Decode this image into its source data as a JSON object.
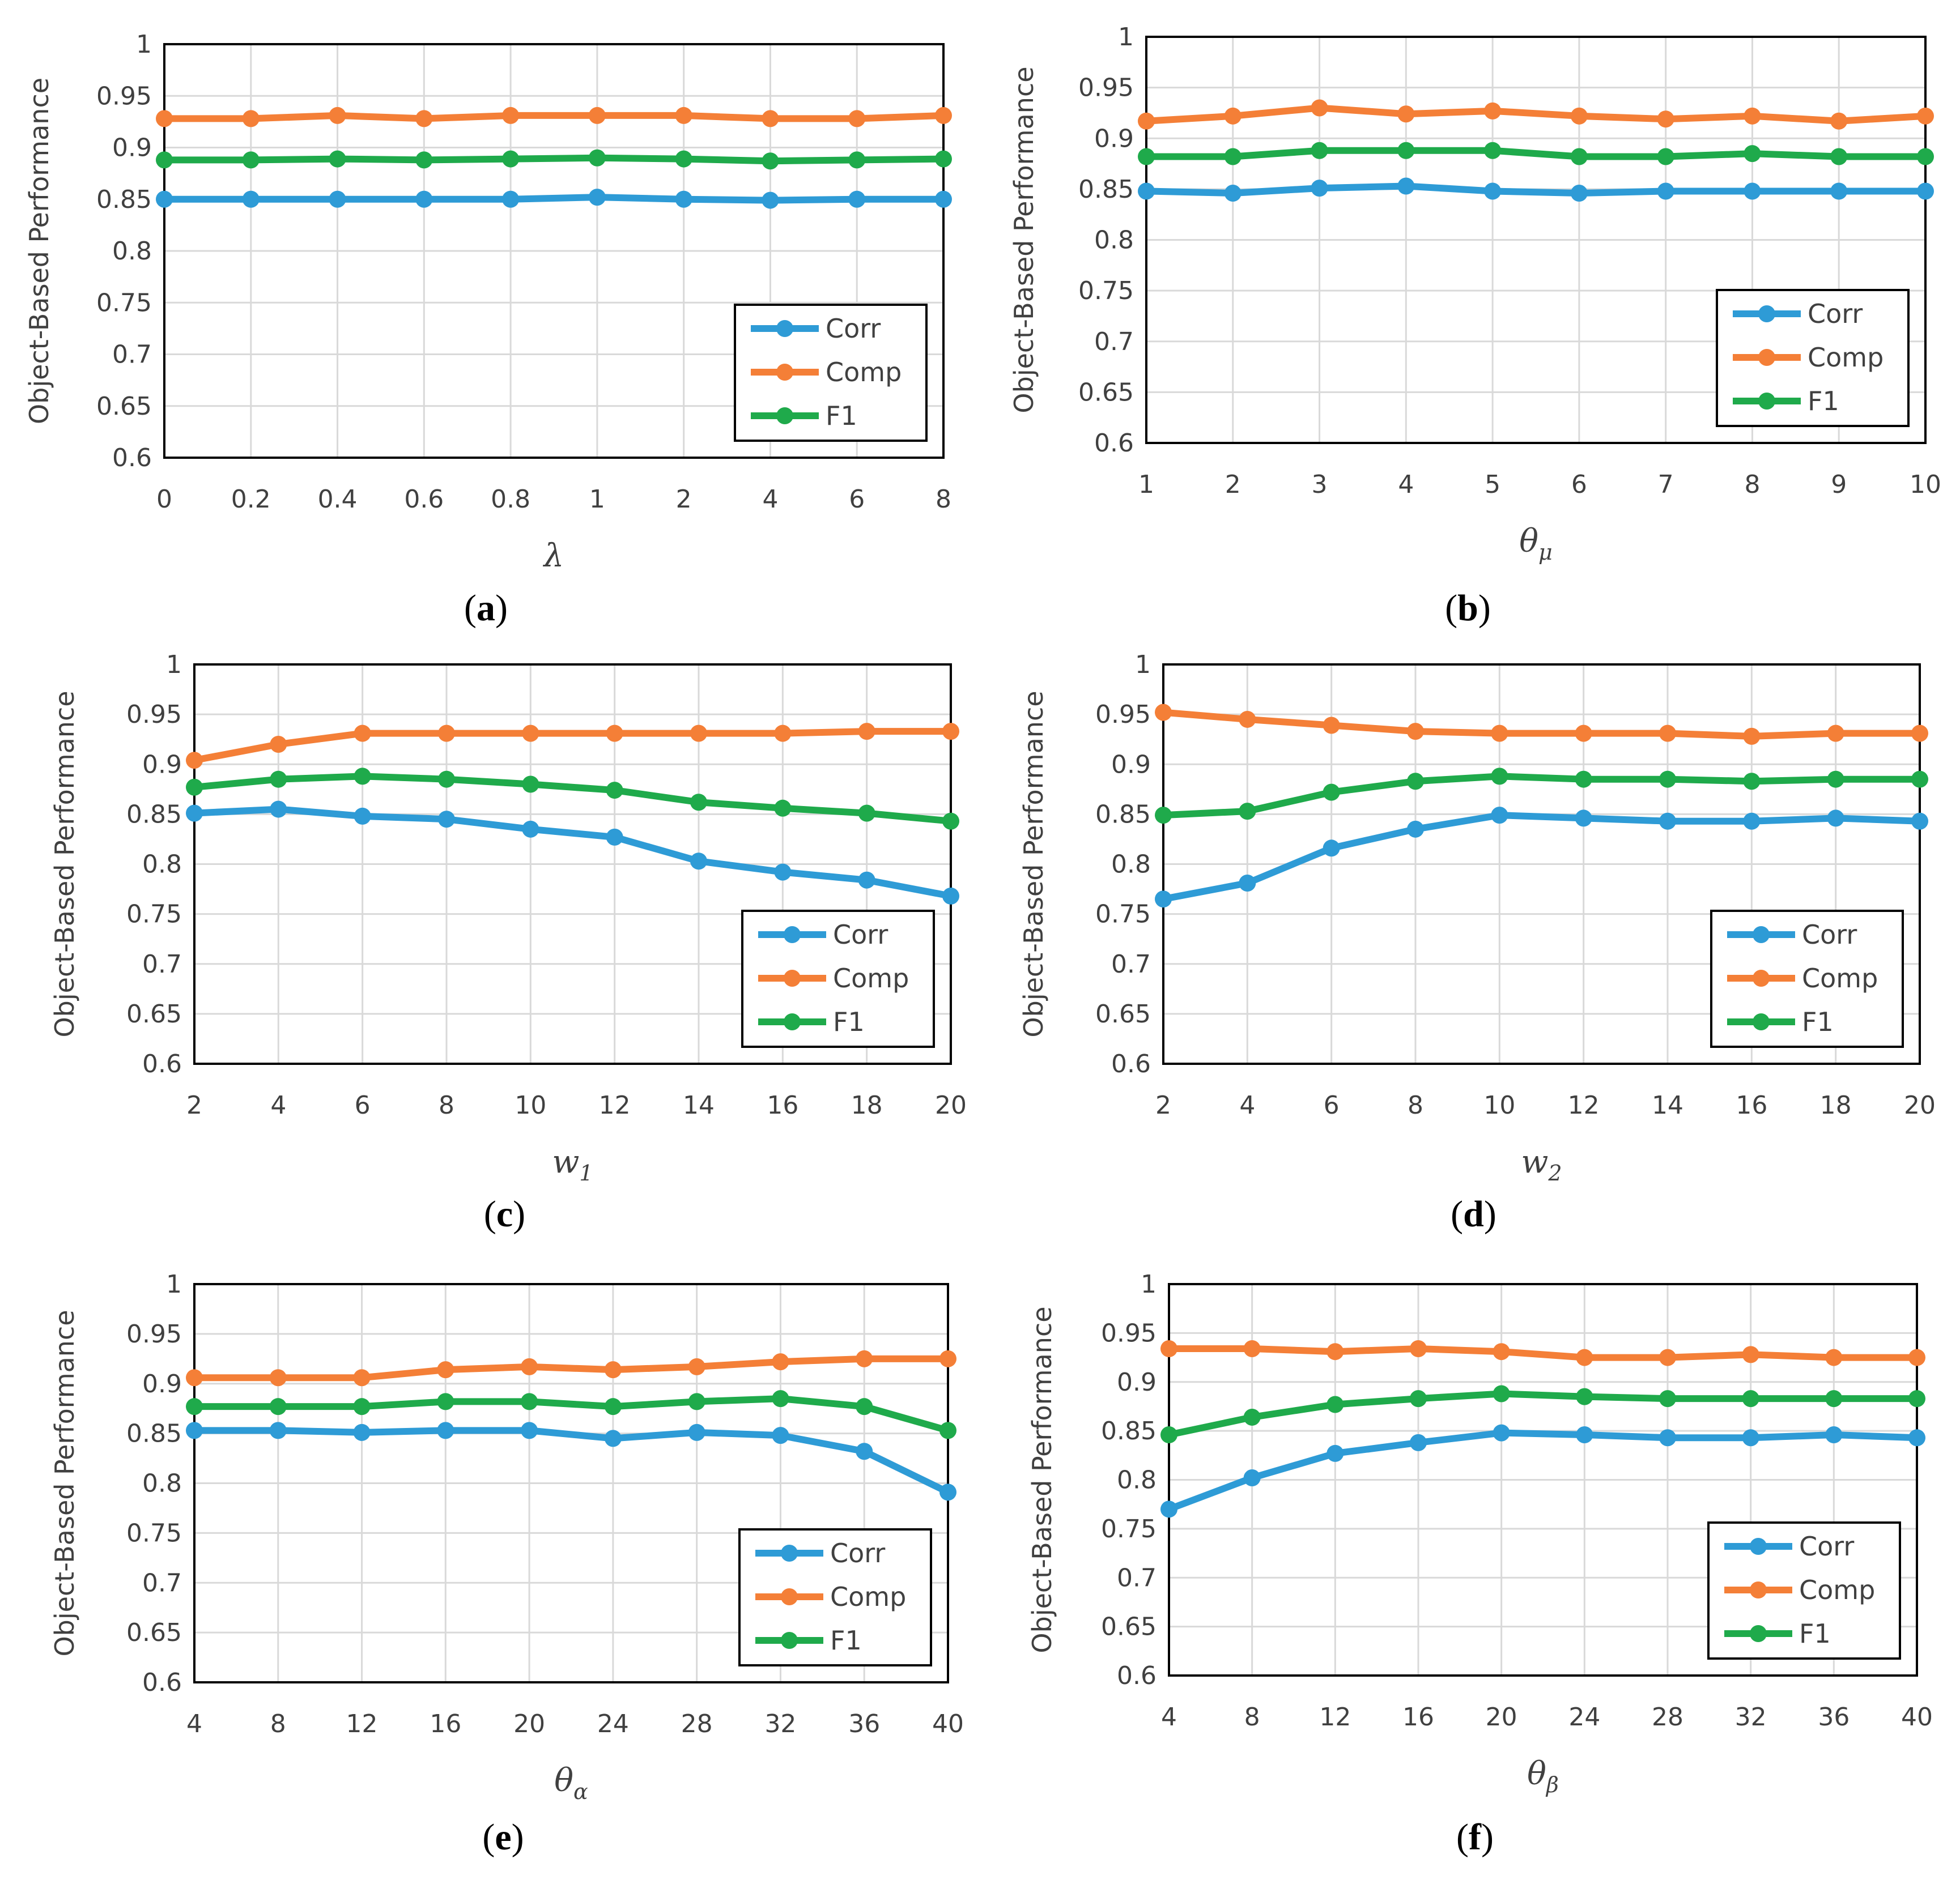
{
  "colors": {
    "Corr": "#2E9BD6",
    "Comp": "#F47F37",
    "F1": "#1FAA4B",
    "grid": "#D9D9D9",
    "frame": "#000000"
  },
  "chart_data": [
    {
      "type": "line",
      "caption_letter": "a",
      "xlabel_main": "λ",
      "xlabel_sub": "",
      "ylabel": "Object-Based Performance",
      "ylim": [
        0.6,
        1
      ],
      "yticks": [
        "0.6",
        "0.65",
        "0.7",
        "0.75",
        "0.8",
        "0.85",
        "0.9",
        "0.95",
        "1"
      ],
      "categories": [
        "0",
        "0.2",
        "0.4",
        "0.6",
        "0.8",
        "1",
        "2",
        "4",
        "6",
        "8"
      ],
      "legend": "bottom-right",
      "series": [
        {
          "name": "Corr",
          "values": [
            0.85,
            0.85,
            0.85,
            0.85,
            0.85,
            0.852,
            0.85,
            0.849,
            0.85,
            0.85
          ]
        },
        {
          "name": "Comp",
          "values": [
            0.928,
            0.928,
            0.931,
            0.928,
            0.931,
            0.931,
            0.931,
            0.928,
            0.928,
            0.931
          ]
        },
        {
          "name": "F1",
          "values": [
            0.888,
            0.888,
            0.889,
            0.888,
            0.889,
            0.89,
            0.889,
            0.887,
            0.888,
            0.889
          ]
        }
      ]
    },
    {
      "type": "line",
      "caption_letter": "b",
      "xlabel_main": "θ",
      "xlabel_sub": "μ",
      "ylabel": "Object-Based Performance",
      "ylim": [
        0.6,
        1
      ],
      "yticks": [
        "0.6",
        "0.65",
        "0.7",
        "0.75",
        "0.8",
        "0.85",
        "0.9",
        "0.95",
        "1"
      ],
      "categories": [
        "1",
        "2",
        "3",
        "4",
        "5",
        "6",
        "7",
        "8",
        "9",
        "10"
      ],
      "legend": "bottom-right",
      "series": [
        {
          "name": "Corr",
          "values": [
            0.848,
            0.846,
            0.851,
            0.853,
            0.848,
            0.846,
            0.848,
            0.848,
            0.848,
            0.848
          ]
        },
        {
          "name": "Comp",
          "values": [
            0.917,
            0.922,
            0.93,
            0.924,
            0.927,
            0.922,
            0.919,
            0.922,
            0.917,
            0.922
          ]
        },
        {
          "name": "F1",
          "values": [
            0.882,
            0.882,
            0.888,
            0.888,
            0.888,
            0.882,
            0.882,
            0.885,
            0.882,
            0.882
          ]
        }
      ]
    },
    {
      "type": "line",
      "caption_letter": "c",
      "xlabel_main": "w",
      "xlabel_sub": "1",
      "ylabel": "Object-Based Performance",
      "ylim": [
        0.6,
        1
      ],
      "yticks": [
        "0.6",
        "0.65",
        "0.7",
        "0.75",
        "0.8",
        "0.85",
        "0.9",
        "0.95",
        "1"
      ],
      "categories": [
        "2",
        "4",
        "6",
        "8",
        "10",
        "12",
        "14",
        "16",
        "18",
        "20"
      ],
      "legend": "bottom-right",
      "series": [
        {
          "name": "Corr",
          "values": [
            0.851,
            0.855,
            0.848,
            0.845,
            0.835,
            0.827,
            0.803,
            0.792,
            0.784,
            0.768
          ]
        },
        {
          "name": "Comp",
          "values": [
            0.904,
            0.92,
            0.931,
            0.931,
            0.931,
            0.931,
            0.931,
            0.931,
            0.933,
            0.933
          ]
        },
        {
          "name": "F1",
          "values": [
            0.877,
            0.885,
            0.888,
            0.885,
            0.88,
            0.874,
            0.862,
            0.856,
            0.851,
            0.843
          ]
        }
      ]
    },
    {
      "type": "line",
      "caption_letter": "d",
      "xlabel_main": "w",
      "xlabel_sub": "2",
      "ylabel": "Object-Based Performance",
      "ylim": [
        0.6,
        1
      ],
      "yticks": [
        "0.6",
        "0.65",
        "0.7",
        "0.75",
        "0.8",
        "0.85",
        "0.9",
        "0.95",
        "1"
      ],
      "categories": [
        "2",
        "4",
        "6",
        "8",
        "10",
        "12",
        "14",
        "16",
        "18",
        "20"
      ],
      "legend": "bottom-right",
      "series": [
        {
          "name": "Corr",
          "values": [
            0.765,
            0.781,
            0.816,
            0.835,
            0.849,
            0.846,
            0.843,
            0.843,
            0.846,
            0.843
          ]
        },
        {
          "name": "Comp",
          "values": [
            0.952,
            0.945,
            0.939,
            0.933,
            0.931,
            0.931,
            0.931,
            0.928,
            0.931,
            0.931
          ]
        },
        {
          "name": "F1",
          "values": [
            0.849,
            0.853,
            0.872,
            0.883,
            0.888,
            0.885,
            0.885,
            0.883,
            0.885,
            0.885
          ]
        }
      ]
    },
    {
      "type": "line",
      "caption_letter": "e",
      "xlabel_main": "θ",
      "xlabel_sub": "α",
      "ylabel": "Object-Based Performance",
      "ylim": [
        0.6,
        1
      ],
      "yticks": [
        "0.6",
        "0.65",
        "0.7",
        "0.75",
        "0.8",
        "0.85",
        "0.9",
        "0.95",
        "1"
      ],
      "categories": [
        "4",
        "8",
        "12",
        "16",
        "20",
        "24",
        "28",
        "32",
        "36",
        "40"
      ],
      "legend": "bottom-right",
      "series": [
        {
          "name": "Corr",
          "values": [
            0.853,
            0.853,
            0.851,
            0.853,
            0.853,
            0.845,
            0.851,
            0.848,
            0.832,
            0.791
          ]
        },
        {
          "name": "Comp",
          "values": [
            0.906,
            0.906,
            0.906,
            0.914,
            0.917,
            0.914,
            0.917,
            0.922,
            0.925,
            0.925
          ]
        },
        {
          "name": "F1",
          "values": [
            0.877,
            0.877,
            0.877,
            0.882,
            0.882,
            0.877,
            0.882,
            0.885,
            0.877,
            0.853
          ]
        }
      ]
    },
    {
      "type": "line",
      "caption_letter": "f",
      "xlabel_main": "θ",
      "xlabel_sub": "β",
      "ylabel": "Object-Based Performance",
      "ylim": [
        0.6,
        1
      ],
      "yticks": [
        "0.6",
        "0.65",
        "0.7",
        "0.75",
        "0.8",
        "0.85",
        "0.9",
        "0.95",
        "1"
      ],
      "categories": [
        "4",
        "8",
        "12",
        "16",
        "20",
        "24",
        "28",
        "32",
        "36",
        "40"
      ],
      "legend": "bottom-right",
      "series": [
        {
          "name": "Corr",
          "values": [
            0.77,
            0.802,
            0.827,
            0.838,
            0.848,
            0.846,
            0.843,
            0.843,
            0.846,
            0.843
          ]
        },
        {
          "name": "Comp",
          "values": [
            0.934,
            0.934,
            0.931,
            0.934,
            0.931,
            0.925,
            0.925,
            0.928,
            0.925,
            0.925
          ]
        },
        {
          "name": "F1",
          "values": [
            0.846,
            0.864,
            0.877,
            0.883,
            0.888,
            0.885,
            0.883,
            0.883,
            0.883,
            0.883
          ]
        }
      ]
    }
  ]
}
